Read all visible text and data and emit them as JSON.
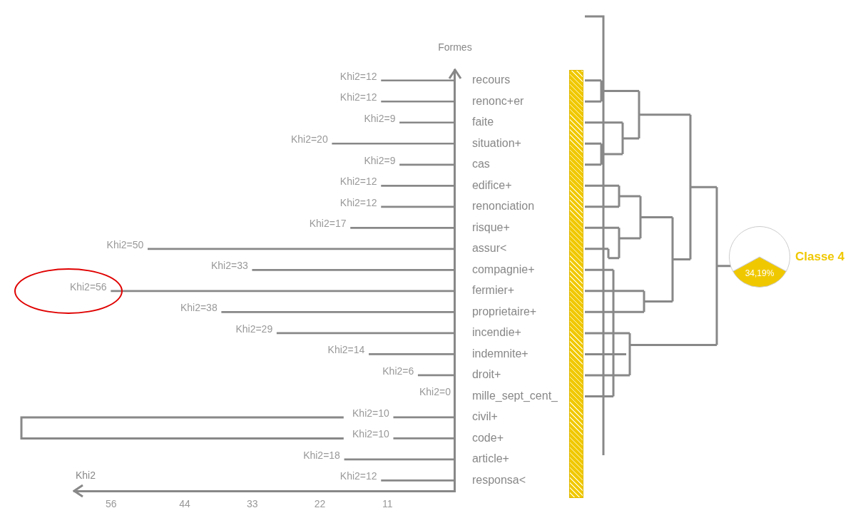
{
  "chart_data": [
    {
      "type": "bar",
      "orientation": "horizontal",
      "xlabel": "Khi2",
      "ylabel": "Formes",
      "categories": [
        "recours",
        "renonc+er",
        "faite",
        "situation+",
        "cas",
        "edifice+",
        "renonciation",
        "risque+",
        "assur<",
        "compagnie+",
        "fermier+",
        "proprietaire+",
        "incendie+",
        "indemnite+",
        "droit+",
        "mille_sept_cent_",
        "civil+",
        "code+",
        "article+",
        "responsa<"
      ],
      "values": [
        12,
        12,
        9,
        20,
        9,
        12,
        12,
        17,
        50,
        33,
        56,
        38,
        29,
        14,
        6,
        0,
        10,
        10,
        18,
        12
      ],
      "value_labels": [
        "Khi2=12",
        "Khi2=12",
        "Khi2=9",
        "Khi2=20",
        "Khi2=9",
        "Khi2=12",
        "Khi2=12",
        "Khi2=17",
        "Khi2=50",
        "Khi2=33",
        "Khi2=56",
        "Khi2=38",
        "Khi2=29",
        "Khi2=14",
        "Khi2=6",
        "Khi2=0",
        "Khi2=10",
        "Khi2=10",
        "Khi2=18",
        "Khi2=12"
      ],
      "color": "#888888",
      "xlim": [
        62,
        0
      ],
      "xticks": [
        56,
        44,
        33,
        22,
        11
      ],
      "grid": false,
      "legend": false
    },
    {
      "type": "pie",
      "title": "Classe 4",
      "categories": [
        null,
        null
      ],
      "values": [
        34.19,
        65.81
      ],
      "colors": [
        "#f0c800",
        "#ffffff"
      ],
      "value_labels": [
        "34,19%",
        null
      ],
      "legend": false
    }
  ]
}
